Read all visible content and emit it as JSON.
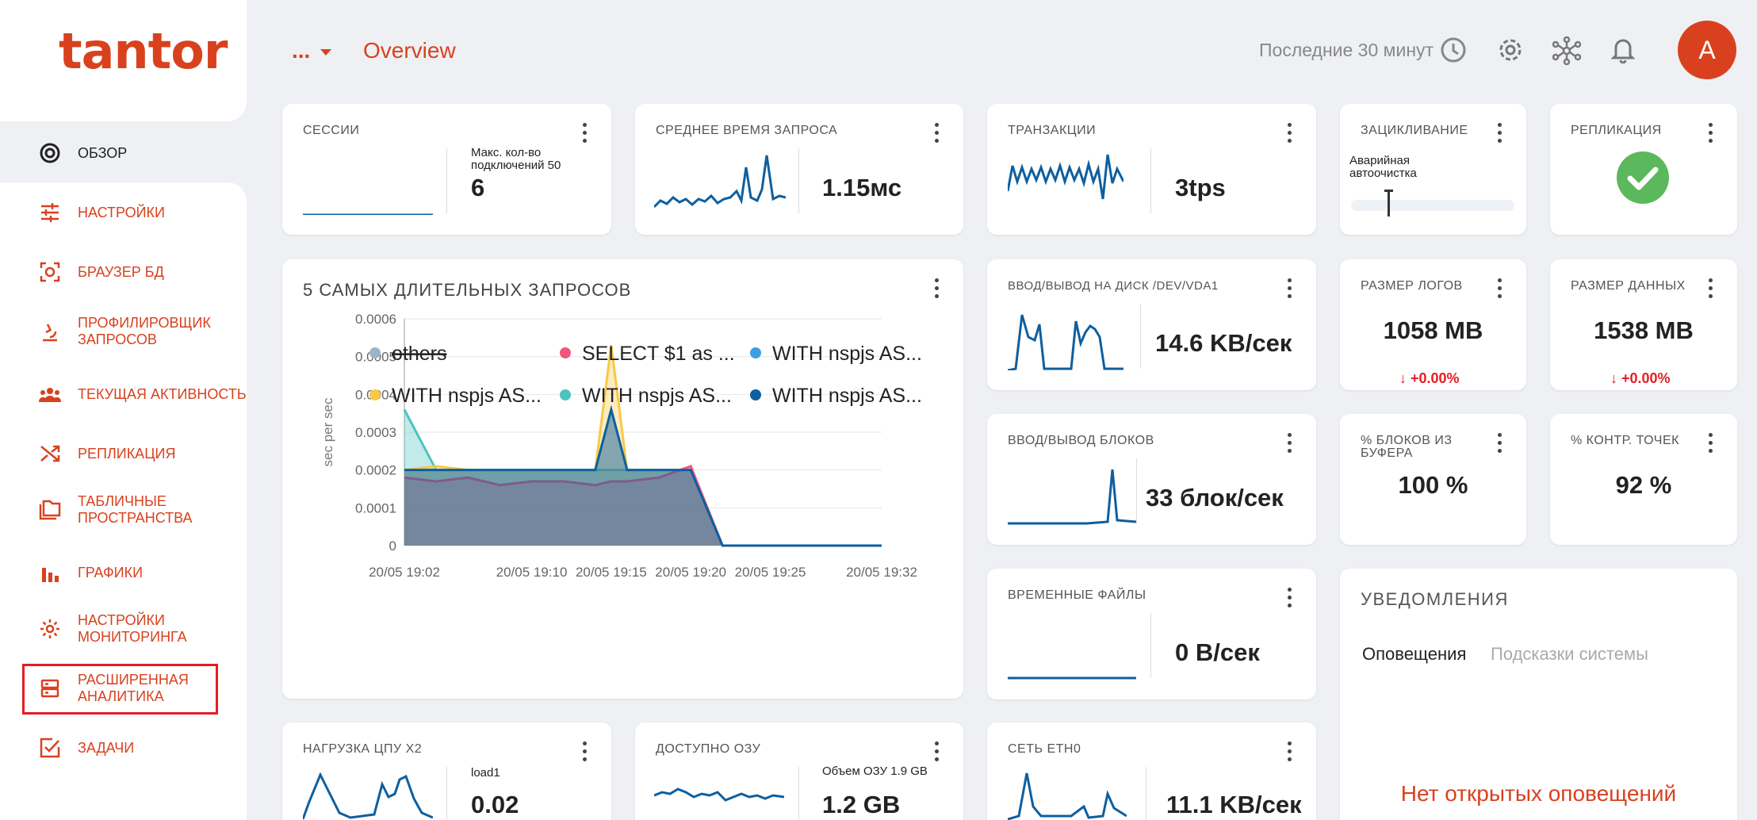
{
  "brand": {
    "logo_text": "tantor"
  },
  "header": {
    "menu_dots": "...",
    "title": "Overview",
    "time_range": "Последние 30 минут",
    "avatar_letter": "A"
  },
  "nav": {
    "items": [
      {
        "label": "ОБЗОР"
      },
      {
        "label": "НАСТРОЙКИ"
      },
      {
        "label": "БРАУЗЕР БД"
      },
      {
        "label": "ПРОФИЛИРОВЩИК ЗАПРОСОВ"
      },
      {
        "label": "ТЕКУЩАЯ АКТИВНОСТЬ"
      },
      {
        "label": "РЕПЛИКАЦИЯ"
      },
      {
        "label": "ТАБЛИЧНЫЕ ПРОСТРАНСТВА"
      },
      {
        "label": "ГРАФИКИ"
      },
      {
        "label": "НАСТРОЙКИ МОНИТОРИНГА"
      },
      {
        "label": "РАСШИРЕННАЯ АНАЛИТИКА"
      },
      {
        "label": "ЗАДАЧИ"
      }
    ]
  },
  "cards": {
    "sessions": {
      "title": "СЕССИИ",
      "max_label": "Макс. кол-во подключений 50",
      "value": "6"
    },
    "avg_query": {
      "title": "СРЕДНЕЕ ВРЕМЯ ЗАПРОСА",
      "value": "1.15мс"
    },
    "transactions": {
      "title": "ТРАНЗАКЦИИ",
      "value": "3tps"
    },
    "wraparound": {
      "title": "ЗАЦИКЛИВАНИЕ",
      "label": "Аварийная автоочистка"
    },
    "replication": {
      "title": "РЕПЛИКАЦИЯ"
    },
    "disk_io": {
      "title": "ВВОД/ВЫВОД НА ДИСК /DEV/VDA1",
      "value": "14.6 KB/сек"
    },
    "log_size": {
      "title": "РАЗМЕР ЛОГОВ",
      "value": "1058 MB",
      "delta": "+0.00%"
    },
    "data_size": {
      "title": "РАЗМЕР ДАННЫХ",
      "value": "1538 MB",
      "delta": "+0.00%"
    },
    "block_io": {
      "title": "ВВОД/ВЫВОД БЛОКОВ",
      "value": "33 блок/сек"
    },
    "buffer_pct": {
      "title": "% БЛОКОВ ИЗ БУФЕРА",
      "value": "100 %"
    },
    "checkpoint_pct": {
      "title": "% КОНТР. ТОЧЕК",
      "value": "92 %"
    },
    "temp_files": {
      "title": "ВРЕМЕННЫЕ ФАЙЛЫ",
      "value": "0 B/сек"
    },
    "cpu": {
      "title": "НАГРУЗКА ЦПУ X2",
      "sub": "load1",
      "value": "0.02"
    },
    "ram": {
      "title": "ДОСТУПНО ОЗУ",
      "sub": "Объем ОЗУ 1.9 GB",
      "value": "1.2 GB"
    },
    "net": {
      "title": "СЕТЬ ETH0",
      "value": "11.1 KB/сек"
    }
  },
  "notifications": {
    "title": "УВЕДОМЛЕНИЯ",
    "tab_alerts": "Оповещения",
    "tab_hints": "Подсказки системы",
    "empty": "Нет открытых оповещений"
  },
  "chart_data": {
    "type": "area",
    "title": "5 САМЫХ ДЛИТЕЛЬНЫХ ЗАПРОСОВ",
    "ylabel": "sec per sec",
    "xlabel": "",
    "ylim": [
      0,
      0.0006
    ],
    "yticks": [
      "0.0006",
      "0.0005",
      "0.0004",
      "0.0003",
      "0.0002",
      "0.0001",
      "0"
    ],
    "xticks": [
      "20/05 19:02",
      "20/05 19:10",
      "20/05 19:15",
      "20/05 19:20",
      "20/05 19:25",
      "20/05 19:32"
    ],
    "x": [
      "20/05 19:02",
      "20/05 19:04",
      "20/05 19:06",
      "20/05 19:08",
      "20/05 19:10",
      "20/05 19:12",
      "20/05 19:14",
      "20/05 19:15",
      "20/05 19:16",
      "20/05 19:18",
      "20/05 19:20",
      "20/05 19:22",
      "20/05 19:24",
      "20/05 19:26",
      "20/05 19:28",
      "20/05 19:30",
      "20/05 19:32"
    ],
    "series": [
      {
        "name": "others",
        "color": "#9fb3c8",
        "hidden": true,
        "values": [
          0,
          0,
          0,
          0,
          0,
          0,
          0,
          0,
          0,
          0,
          0,
          0,
          0,
          0,
          0,
          0,
          0
        ]
      },
      {
        "name": "SELECT $1 as ...",
        "color": "#f0577a",
        "values": [
          0.00018,
          0.00017,
          0.00018,
          0.00016,
          0.00017,
          0.00017,
          0.00016,
          0.00017,
          0.00017,
          0.00018,
          0.00021,
          0,
          0,
          0,
          0,
          0,
          0
        ]
      },
      {
        "name": "WITH nspjs AS...",
        "color": "#3d9ee0",
        "values": [
          0,
          0,
          0,
          0,
          0,
          0,
          0,
          0,
          0,
          0,
          0,
          0,
          0,
          0,
          0,
          0,
          0
        ]
      },
      {
        "name": "WITH nspjs AS...",
        "color": "#f7c948",
        "values": [
          0.0002,
          0.00021,
          0.0002,
          0.0002,
          0.0002,
          0.0002,
          0.0002,
          0.00053,
          0.0002,
          0.0002,
          0.0002,
          0,
          0,
          0,
          0,
          0,
          0
        ]
      },
      {
        "name": "WITH nspjs AS...",
        "color": "#4cc3c0",
        "values": [
          0.00036,
          0.0002,
          0.0002,
          0.0002,
          0.0002,
          0.0002,
          0.0002,
          0.0002,
          0.0002,
          0.0002,
          0.0002,
          0,
          0,
          0,
          0,
          0,
          0
        ]
      },
      {
        "name": "WITH nspjs AS...",
        "color": "#0d5fa0",
        "values": [
          0.0002,
          0.0002,
          0.0002,
          0.0002,
          0.0002,
          0.0002,
          0.0002,
          0.00036,
          0.0002,
          0.0002,
          0.0002,
          0,
          0,
          0,
          0,
          0,
          0
        ]
      }
    ],
    "grid": true,
    "legend": "bottom"
  }
}
